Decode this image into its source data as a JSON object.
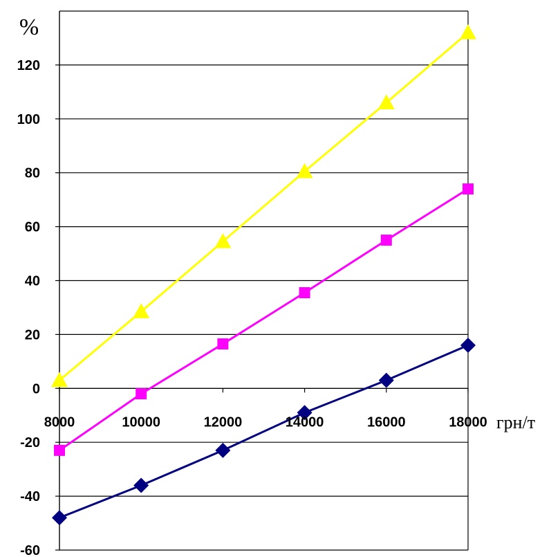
{
  "chart_data": {
    "type": "line",
    "title": "",
    "ylabel": "%",
    "xlabel": "грн/т",
    "x": [
      8000,
      10000,
      12000,
      14000,
      16000,
      18000
    ],
    "xlim": [
      8000,
      18000
    ],
    "ylim": [
      -60,
      140
    ],
    "yticks": [
      -60,
      -40,
      -20,
      0,
      20,
      40,
      60,
      80,
      100,
      120
    ],
    "grid": "horizontal",
    "legend": "none",
    "series": [
      {
        "color": "#000080",
        "marker": "diamond",
        "values": [
          -48,
          -36,
          -23,
          -9,
          3,
          16
        ]
      },
      {
        "color": "#FF00FF",
        "marker": "square",
        "values": [
          -23,
          -2,
          16.5,
          35.5,
          55,
          74
        ]
      },
      {
        "color": "#FFFF00",
        "marker": "triangle",
        "values": [
          3,
          28.5,
          54.5,
          80.5,
          106,
          132
        ]
      }
    ]
  }
}
